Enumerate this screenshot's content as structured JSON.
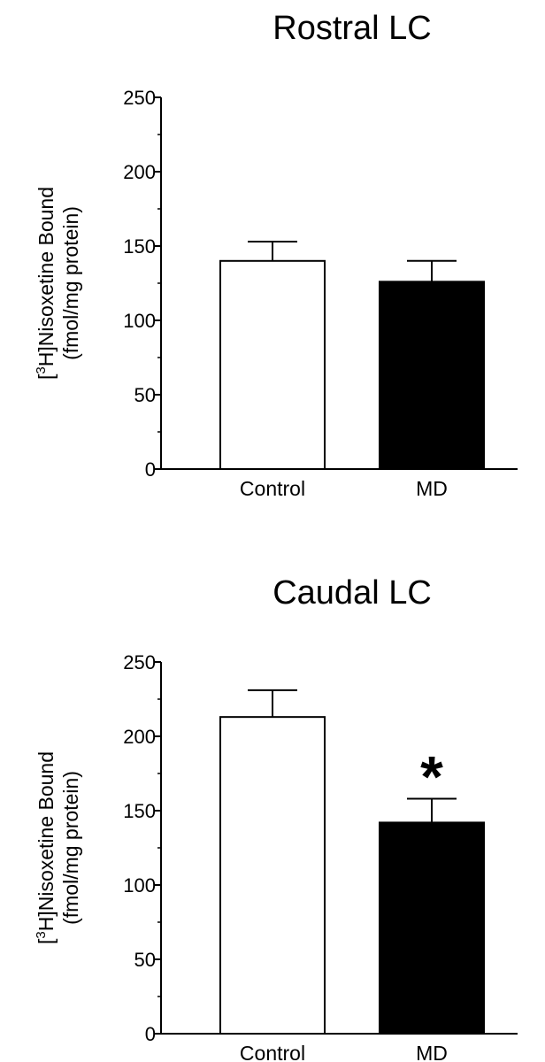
{
  "chart_data": [
    {
      "type": "bar",
      "title": "Rostral LC",
      "ylabel_prefix": "[",
      "ylabel_sup": "3",
      "ylabel_main": "H]Nisoxetine Bound",
      "ylabel_line2": "(fmol/mg protein)",
      "categories": [
        "Control",
        "MD"
      ],
      "values": [
        140,
        126
      ],
      "errors": [
        13,
        14
      ],
      "bar_colors": [
        "#ffffff",
        "#000000"
      ],
      "significance": [
        "",
        ""
      ],
      "ylim": [
        0,
        250
      ],
      "yticks": [
        0,
        50,
        100,
        150,
        200,
        250
      ],
      "ytick_labels": [
        "0",
        "50",
        "100",
        "150",
        "200",
        "250"
      ]
    },
    {
      "type": "bar",
      "title": "Caudal LC",
      "ylabel_prefix": "[",
      "ylabel_sup": "3",
      "ylabel_main": "H]Nisoxetine Bound",
      "ylabel_line2": "(fmol/mg protein)",
      "categories": [
        "Control",
        "MD"
      ],
      "values": [
        213,
        142
      ],
      "errors": [
        18,
        16
      ],
      "bar_colors": [
        "#ffffff",
        "#000000"
      ],
      "significance": [
        "",
        "*"
      ],
      "ylim": [
        0,
        250
      ],
      "yticks": [
        0,
        50,
        100,
        150,
        200,
        250
      ],
      "ytick_labels": [
        "0",
        "50",
        "100",
        "150",
        "200",
        "250"
      ]
    }
  ]
}
